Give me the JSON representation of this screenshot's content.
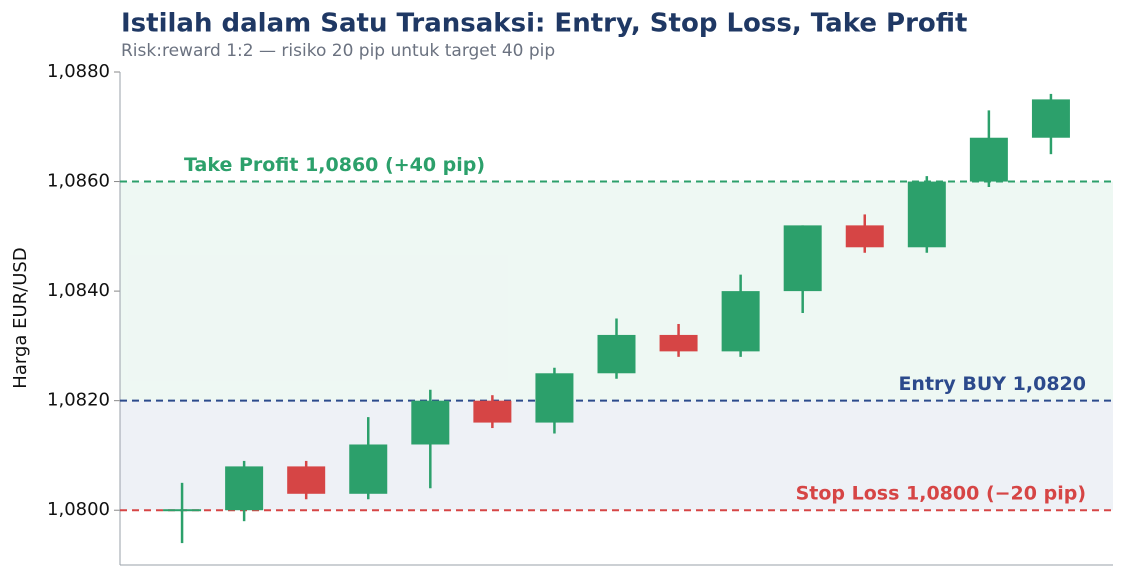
{
  "chart_data": {
    "type": "candlestick",
    "title": "Istilah dalam Satu Transaksi: Entry, Stop Loss, Take Profit",
    "subtitle": "Risk:reward 1:2 — risiko 20 pip untuk target 40 pip",
    "y_label": "Harga EUR/USD",
    "open": [
      1.08,
      1.08,
      1.0808,
      1.0803,
      1.0812,
      1.082,
      1.0816,
      1.0825,
      1.0832,
      1.0829,
      1.084,
      1.0852,
      1.0848,
      1.086,
      1.0868
    ],
    "high": [
      1.0805,
      1.0809,
      1.0809,
      1.0817,
      1.0822,
      1.0821,
      1.0826,
      1.0835,
      1.0834,
      1.0843,
      1.0852,
      1.0854,
      1.0861,
      1.0873,
      1.0876
    ],
    "low": [
      1.0794,
      1.0798,
      1.0802,
      1.0802,
      1.0804,
      1.0815,
      1.0814,
      1.0824,
      1.0828,
      1.0828,
      1.0836,
      1.0847,
      1.0847,
      1.0859,
      1.0865
    ],
    "close": [
      1.08,
      1.0808,
      1.0803,
      1.0812,
      1.082,
      1.0816,
      1.0825,
      1.0832,
      1.0829,
      1.084,
      1.0852,
      1.0848,
      1.086,
      1.0868,
      1.0875
    ],
    "up_color": "#2ca06b",
    "down_color": "#d64545",
    "levels": [
      {
        "label": "Take Profit 1,0860 (+40 pip)",
        "value": 1.086,
        "color": "#2ca06b"
      },
      {
        "label": "Entry BUY 1,0820",
        "value": 1.082,
        "color": "#2c4a8c"
      },
      {
        "label": "Stop Loss 1,0800 (−20 pip)",
        "value": 1.08,
        "color": "#d64545"
      }
    ],
    "ylim": [
      1.079,
      1.088
    ],
    "yticks": [
      {
        "value": 1.08,
        "label": "1,0800"
      },
      {
        "value": 1.082,
        "label": "1,0820"
      },
      {
        "value": 1.084,
        "label": "1,0840"
      },
      {
        "value": 1.086,
        "label": "1,0860"
      },
      {
        "value": 1.088,
        "label": "1,0880"
      }
    ]
  }
}
